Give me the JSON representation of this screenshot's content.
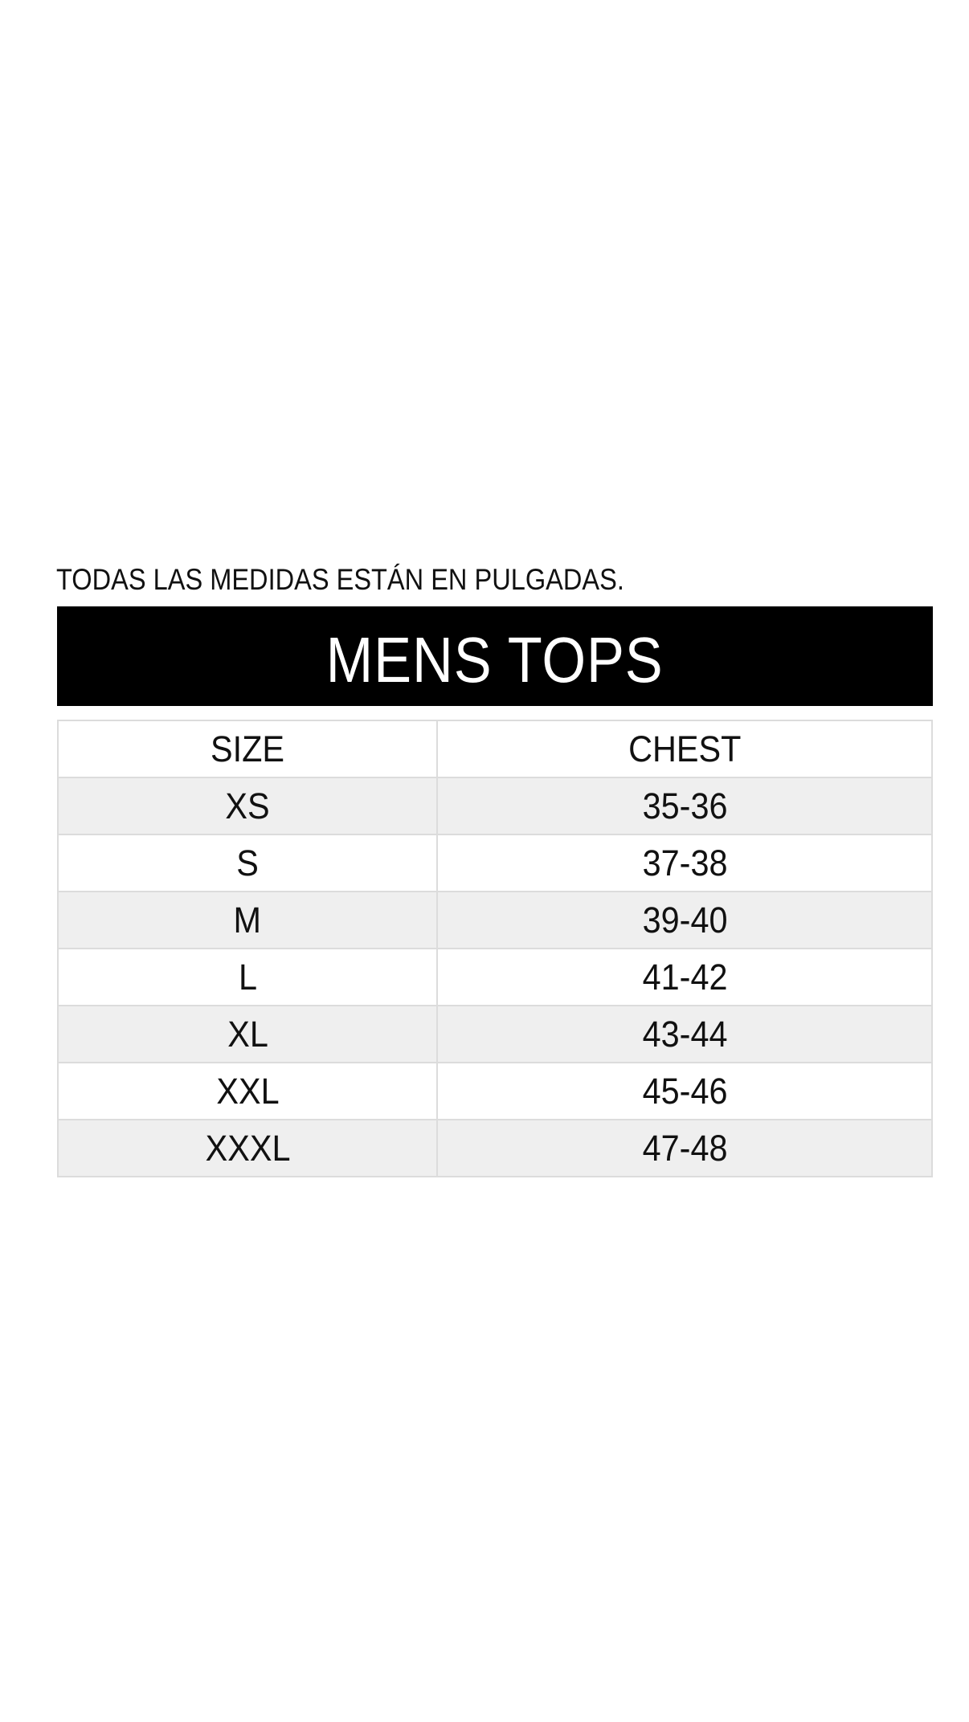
{
  "page": {
    "background": "#ffffff"
  },
  "note": {
    "text": "TODAS LAS MEDIDAS ESTÁN EN PULGADAS."
  },
  "banner": {
    "title": "MENS TOPS",
    "background": "#000000",
    "text_color": "#ffffff"
  },
  "size_table": {
    "headers": [
      "SIZE",
      "CHEST"
    ],
    "rows": [
      {
        "size": "XS",
        "chest": "35-36"
      },
      {
        "size": "S",
        "chest": "37-38"
      },
      {
        "size": "M",
        "chest": "39-40"
      },
      {
        "size": "L",
        "chest": "41-42"
      },
      {
        "size": "XL",
        "chest": "43-44"
      },
      {
        "size": "XXL",
        "chest": "45-46"
      },
      {
        "size": "XXXL",
        "chest": "47-48"
      }
    ],
    "stripe_color": "#efefef",
    "border_color": "#dcdcdc"
  }
}
